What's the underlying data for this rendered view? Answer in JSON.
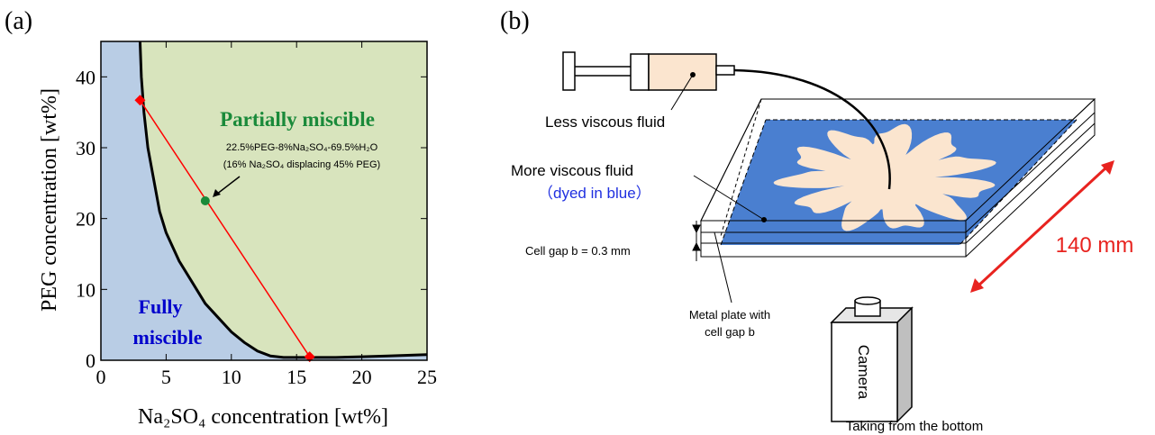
{
  "chart_data": {
    "type": "line",
    "panel_label": "(a)",
    "x_label": "Na₂SO₄ concentration [wt%]",
    "y_label": "PEG concentration [wt%]",
    "xlim": [
      0,
      25
    ],
    "ylim": [
      0,
      45
    ],
    "xticks": [
      0,
      5,
      10,
      15,
      20,
      25
    ],
    "yticks": [
      0,
      10,
      20,
      30,
      40
    ],
    "region_colors": [
      "#b9cde5",
      "#d8e4bd"
    ],
    "series": [
      {
        "color": "#000000",
        "x": [
          3,
          3.1,
          3.3,
          3.6,
          4,
          4.5,
          5,
          6,
          7,
          8,
          9,
          10,
          11,
          12,
          13,
          14,
          16,
          18,
          20,
          22,
          25
        ],
        "values": [
          45,
          40,
          35,
          30,
          26,
          21,
          18,
          14,
          11,
          8,
          6,
          4,
          2.5,
          1.3,
          0.6,
          0.4,
          0.4,
          0.4,
          0.5,
          0.6,
          0.8
        ]
      }
    ],
    "tie_line": {
      "color": "#ff0000",
      "x": [
        3,
        16
      ],
      "values": [
        36.7,
        0.5
      ]
    },
    "point": {
      "color": "#1a8a3a",
      "x": 8,
      "value": 22.5
    },
    "annotations": [
      "Partially miscible",
      "22.5%PEG-8%Na₂SO₄-69.5%H₂O",
      "(16% Na₂SO₄ displacing 45% PEG)",
      "Fully",
      "miscible"
    ]
  },
  "diagram": {
    "panel_label": "(b)",
    "less_viscous": "Less viscous fluid",
    "more_viscous": "More viscous fluid",
    "dyed": "（dyed in blue）",
    "cell_gap": "Cell gap b = 0.3 mm",
    "metal_plate": [
      "Metal plate with",
      "cell gap b"
    ],
    "camera": "Camera",
    "taking": "Taking from the bottom",
    "length": "140 mm"
  }
}
